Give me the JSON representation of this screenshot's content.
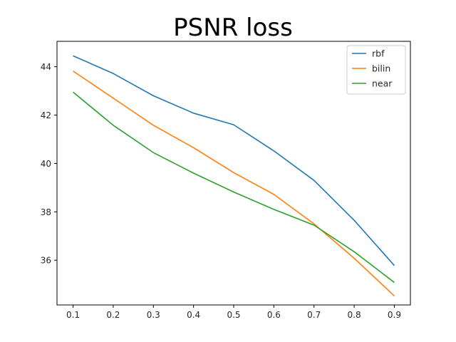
{
  "chart_data": {
    "type": "line",
    "title": "PSNR loss",
    "xlabel": "",
    "ylabel": "",
    "x": [
      0.1,
      0.2,
      0.3,
      0.4,
      0.5,
      0.6,
      0.7,
      0.8,
      0.9
    ],
    "x_ticks": [
      "0.1",
      "0.2",
      "0.3",
      "0.4",
      "0.5",
      "0.6",
      "0.7",
      "0.8",
      "0.9"
    ],
    "y_ticks": [
      36,
      38,
      40,
      42,
      44
    ],
    "xlim": [
      0.06,
      0.94
    ],
    "ylim": [
      34.15,
      45.05
    ],
    "grid": false,
    "legend_position": "top-right",
    "series": [
      {
        "name": "rbf",
        "color": "#1f77b4",
        "values": [
          44.45,
          43.72,
          42.8,
          42.08,
          41.6,
          40.52,
          39.3,
          37.65,
          35.78
        ]
      },
      {
        "name": "bilin",
        "color": "#ff7f0e",
        "values": [
          43.82,
          42.7,
          41.58,
          40.65,
          39.62,
          38.72,
          37.5,
          36.08,
          34.52
        ]
      },
      {
        "name": "near",
        "color": "#2ca02c",
        "values": [
          42.95,
          41.58,
          40.45,
          39.6,
          38.82,
          38.1,
          37.45,
          36.35,
          35.08
        ]
      }
    ]
  }
}
